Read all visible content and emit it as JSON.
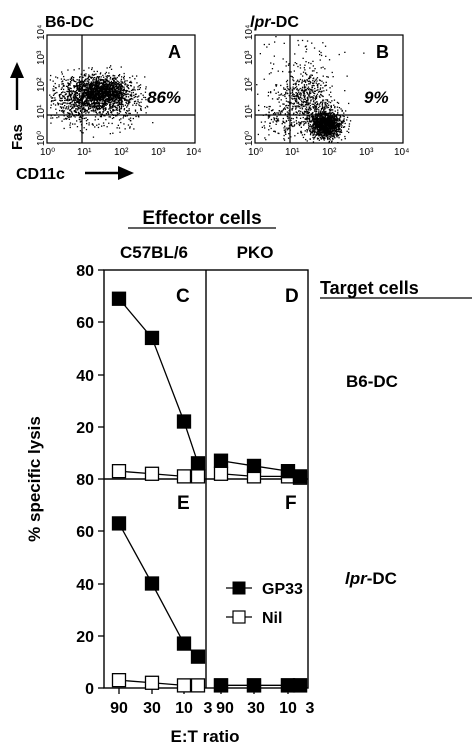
{
  "flow": {
    "panel_a": {
      "title_prefix": "B6-DC",
      "letter": "A",
      "percent": "86%",
      "x_ticks": [
        "10⁰",
        "10¹",
        "10²",
        "10³",
        "10⁴"
      ],
      "y_ticks": [
        "10⁰",
        "10¹",
        "10²",
        "10³",
        "10⁴"
      ]
    },
    "panel_b": {
      "title_italic": "lpr",
      "title_rest": "-DC",
      "letter": "B",
      "percent": "9%",
      "x_ticks": [
        "10⁰",
        "10¹",
        "10²",
        "10³",
        "10⁴"
      ],
      "y_ticks": [
        "10⁰",
        "10¹",
        "10²",
        "10³",
        "10⁴"
      ]
    },
    "y_label": "Fas",
    "x_label": "CD11c"
  },
  "lysis": {
    "effector_header": "Effector cells",
    "col_headers": [
      "C57BL/6",
      "PKO"
    ],
    "target_header": "Target cells",
    "row_headers": [
      {
        "italic": "",
        "rest": "B6-DC"
      },
      {
        "italic": "lpr",
        "rest": "-DC"
      }
    ],
    "panel_letters": [
      "C",
      "D",
      "E",
      "F"
    ],
    "y_label": "% specific lysis",
    "x_label": "E:T ratio",
    "y_ticks_top": [
      "80",
      "60",
      "40",
      "20"
    ],
    "y_ticks_bottom": [
      "80",
      "60",
      "40",
      "20",
      "0"
    ],
    "x_ticks": [
      "90",
      "30",
      "10",
      "3"
    ],
    "legend": [
      {
        "name": "GP33",
        "marker": "filled-square"
      },
      {
        "name": "Nil",
        "marker": "open-square"
      }
    ]
  },
  "chart_data": [
    {
      "type": "line",
      "panel": "C",
      "x": [
        "90",
        "30",
        "10",
        "3"
      ],
      "ylim": [
        0,
        80
      ],
      "series": [
        {
          "name": "GP33",
          "values": [
            69,
            54,
            22,
            6
          ]
        },
        {
          "name": "Nil",
          "values": [
            3,
            2,
            1,
            1
          ]
        }
      ]
    },
    {
      "type": "line",
      "panel": "D",
      "x": [
        "90",
        "30",
        "10",
        "3"
      ],
      "ylim": [
        0,
        80
      ],
      "series": [
        {
          "name": "GP33",
          "values": [
            7,
            5,
            3,
            1
          ]
        },
        {
          "name": "Nil",
          "values": [
            2,
            1,
            1,
            0.5
          ]
        }
      ]
    },
    {
      "type": "line",
      "panel": "E",
      "x": [
        "90",
        "30",
        "10",
        "3"
      ],
      "ylim": [
        0,
        80
      ],
      "series": [
        {
          "name": "GP33",
          "values": [
            63,
            40,
            17,
            12
          ]
        },
        {
          "name": "Nil",
          "values": [
            3,
            2,
            1,
            1
          ]
        }
      ]
    },
    {
      "type": "line",
      "panel": "F",
      "x": [
        "90",
        "30",
        "10",
        "3"
      ],
      "ylim": [
        0,
        80
      ],
      "series": [
        {
          "name": "GP33",
          "values": [
            1,
            1,
            1,
            1
          ]
        },
        {
          "name": "Nil",
          "values": [
            1,
            1,
            1,
            1
          ]
        }
      ]
    }
  ]
}
